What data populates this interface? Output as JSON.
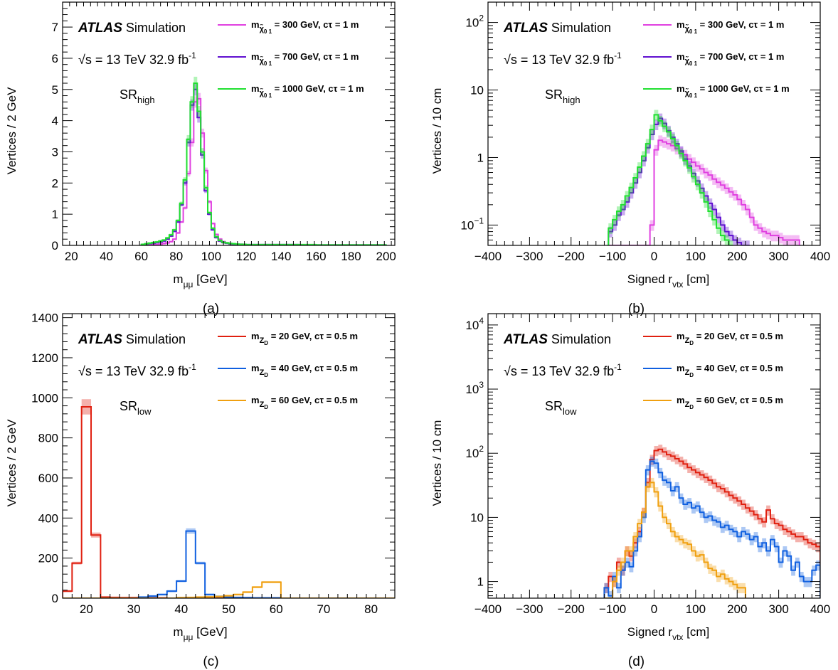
{
  "chart_data": [
    {
      "panel": "a",
      "type": "line",
      "caption": "(a)",
      "xlabel": "m",
      "xlabel_sub": "μμ",
      "xlabel_unit": " [GeV]",
      "ylabel": "Vertices / 2 GeV",
      "xlim": [
        15,
        205
      ],
      "ylim": [
        0,
        7.8
      ],
      "ylog": false,
      "xticks": [
        "20",
        "40",
        "60",
        "80",
        "100",
        "120",
        "140",
        "160",
        "180",
        "200"
      ],
      "xtick_values": [
        20,
        40,
        60,
        80,
        100,
        120,
        140,
        160,
        180,
        200
      ],
      "yticks": [
        "0",
        "1",
        "2",
        "3",
        "4",
        "5",
        "6",
        "7"
      ],
      "ytick_values": [
        0,
        1,
        2,
        3,
        4,
        5,
        6,
        7
      ],
      "atlas": "ATLAS",
      "atlas_suffix": "Simulation",
      "energy_text": "√s = 13 TeV  32.9 fb",
      "energy_sup": "-1",
      "region": "SR",
      "region_sub": "high",
      "x_edges": [
        60,
        62,
        64,
        66,
        68,
        70,
        72,
        74,
        76,
        78,
        80,
        82,
        84,
        86,
        88,
        90,
        92,
        94,
        96,
        98,
        100,
        102,
        104,
        106,
        108,
        110,
        112,
        114,
        116,
        118,
        120,
        130,
        140,
        150,
        160,
        170,
        180,
        190,
        200
      ],
      "series": [
        {
          "name_prefix": "m",
          "name_sub": "χ̃",
          "name_subsub": "0 1",
          "name_suffix": " = 300 GeV, cτ = 1 m",
          "color": "#e040e0",
          "values": [
            0.0,
            0.01,
            0.01,
            0.02,
            0.03,
            0.04,
            0.06,
            0.08,
            0.12,
            0.2,
            0.4,
            0.75,
            1.2,
            2.3,
            3.3,
            4.6,
            4.7,
            3.6,
            2.4,
            1.4,
            0.7,
            0.35,
            0.2,
            0.12,
            0.08,
            0.05,
            0.03,
            0.02,
            0.02,
            0.01,
            0.01,
            0.01,
            0.01,
            0.01,
            0.0,
            0.0,
            0.0,
            0.0
          ]
        },
        {
          "name_prefix": "m",
          "name_sub": "χ̃",
          "name_subsub": "0 1",
          "name_suffix": " = 700 GeV, cτ = 1 m",
          "color": "#6010d0",
          "values": [
            0.02,
            0.04,
            0.06,
            0.07,
            0.09,
            0.11,
            0.14,
            0.2,
            0.3,
            0.45,
            0.75,
            1.3,
            2.0,
            3.3,
            4.5,
            5.0,
            4.1,
            2.9,
            1.75,
            1.0,
            0.5,
            0.25,
            0.14,
            0.09,
            0.07,
            0.05,
            0.04,
            0.03,
            0.03,
            0.02,
            0.02,
            0.02,
            0.02,
            0.01,
            0.01,
            0.01,
            0.01,
            0.01
          ]
        },
        {
          "name_prefix": "m",
          "name_sub": "χ̃",
          "name_subsub": "0 1",
          "name_suffix": " = 1000 GeV, cτ = 1 m",
          "color": "#20e030",
          "values": [
            0.03,
            0.05,
            0.07,
            0.09,
            0.11,
            0.14,
            0.17,
            0.24,
            0.34,
            0.5,
            0.8,
            1.35,
            2.1,
            3.4,
            4.6,
            5.2,
            4.3,
            3.0,
            1.85,
            1.05,
            0.55,
            0.28,
            0.16,
            0.1,
            0.08,
            0.06,
            0.05,
            0.04,
            0.03,
            0.03,
            0.02,
            0.02,
            0.02,
            0.02,
            0.01,
            0.01,
            0.01,
            0.01
          ]
        }
      ]
    },
    {
      "panel": "b",
      "type": "line",
      "caption": "(b)",
      "xlabel": "Signed r",
      "xlabel_sub": "vtx",
      "xlabel_unit": " [cm]",
      "ylabel": "Vertices / 10 cm",
      "xlim": [
        -400,
        400
      ],
      "ylim": [
        0.05,
        200
      ],
      "ylog": true,
      "xticks": [
        "−400",
        "−300",
        "−200",
        "−100",
        "0",
        "100",
        "200",
        "300",
        "400"
      ],
      "xtick_values": [
        -400,
        -300,
        -200,
        -100,
        0,
        100,
        200,
        300,
        400
      ],
      "yticks_log": [
        {
          "base": "10",
          "exp": "−1",
          "value": 0.1
        },
        {
          "base": "1",
          "exp": "",
          "value": 1
        },
        {
          "base": "10",
          "exp": "",
          "value": 10
        },
        {
          "base": "10",
          "exp": "2",
          "value": 100
        }
      ],
      "atlas": "ATLAS",
      "atlas_suffix": "Simulation",
      "energy_text": "√s = 13 TeV  32.9 fb",
      "energy_sup": "-1",
      "region": "SR",
      "region_sub": "high",
      "x_start": -110,
      "bin_width": 10,
      "series": [
        {
          "name_prefix": "m",
          "name_sub": "χ̃",
          "name_subsub": "0 1",
          "name_suffix": " = 300 GeV, cτ = 1 m",
          "color": "#e040e0",
          "values": [
            0,
            0,
            0,
            0,
            0,
            0,
            0,
            0,
            0,
            0,
            0.1,
            1.3,
            1.8,
            1.7,
            1.6,
            1.5,
            1.35,
            1.2,
            1.1,
            0.95,
            0.85,
            0.75,
            0.68,
            0.6,
            0.55,
            0.48,
            0.43,
            0.39,
            0.35,
            0.31,
            0.28,
            0.24,
            0.2,
            0.17,
            0.13,
            0.1,
            0.09,
            0.08,
            0.075,
            0.07,
            0.07,
            0.065,
            0.06,
            0.06,
            0.06,
            0.06
          ]
        },
        {
          "name_prefix": "m",
          "name_sub": "χ̃",
          "name_subsub": "0 1",
          "name_suffix": " = 700 GeV, cτ = 1 m",
          "color": "#6010d0",
          "values": [
            0.08,
            0.1,
            0.14,
            0.17,
            0.22,
            0.3,
            0.42,
            0.6,
            0.9,
            1.4,
            2.2,
            3.1,
            3.8,
            3.2,
            2.5,
            2.0,
            1.6,
            1.25,
            0.95,
            0.75,
            0.58,
            0.45,
            0.35,
            0.27,
            0.21,
            0.17,
            0.13,
            0.1,
            0.08,
            0.07,
            0.06,
            0.055,
            0.05,
            0.05
          ]
        },
        {
          "name_prefix": "m",
          "name_sub": "χ̃",
          "name_subsub": "0 1",
          "name_suffix": " = 1000 GeV, cτ = 1 m",
          "color": "#20e030",
          "values": [
            0.09,
            0.12,
            0.16,
            0.2,
            0.27,
            0.36,
            0.5,
            0.72,
            1.05,
            1.6,
            2.6,
            4.3,
            3.5,
            2.9,
            2.4,
            1.9,
            1.5,
            1.15,
            0.9,
            0.7,
            0.52,
            0.4,
            0.3,
            0.22,
            0.16,
            0.12,
            0.09,
            0.07,
            0.06,
            0.05
          ]
        }
      ]
    },
    {
      "panel": "c",
      "type": "line",
      "caption": "(c)",
      "xlabel": "m",
      "xlabel_sub": "μμ",
      "xlabel_unit": " [GeV]",
      "ylabel": "Vertices / 2 GeV",
      "xlim": [
        15,
        85
      ],
      "ylim": [
        0,
        1420
      ],
      "ylog": false,
      "xticks": [
        "20",
        "30",
        "40",
        "50",
        "60",
        "70",
        "80"
      ],
      "xtick_values": [
        20,
        30,
        40,
        50,
        60,
        70,
        80
      ],
      "yticks": [
        "0",
        "200",
        "400",
        "600",
        "800",
        "1000",
        "1200",
        "1400"
      ],
      "ytick_values": [
        0,
        200,
        400,
        600,
        800,
        1000,
        1200,
        1400
      ],
      "atlas": "ATLAS",
      "atlas_suffix": "Simulation",
      "energy_text": "√s = 13 TeV  32.9 fb",
      "energy_sup": "-1",
      "region": "SR",
      "region_sub": "low",
      "x_start": 15,
      "bin_width": 2,
      "series": [
        {
          "name_prefix": "m",
          "name_sub": "Z",
          "name_subsub": "D",
          "name_suffix": " = 20 GeV, cτ = 0.5 m",
          "color": "#e02010",
          "values": [
            35,
            175,
            955,
            315,
            5,
            3,
            2,
            2,
            1,
            1,
            1,
            0,
            0,
            0,
            0,
            0,
            0,
            0,
            0,
            0,
            0,
            0,
            0,
            0,
            0,
            0,
            0,
            0,
            0,
            0,
            0,
            0,
            0,
            0,
            0
          ]
        },
        {
          "name_prefix": "m",
          "name_sub": "Z",
          "name_subsub": "D",
          "name_suffix": " = 40 GeV, cτ = 0.5 m",
          "color": "#1060e0",
          "values": [
            0,
            0,
            0,
            0,
            0,
            0,
            0,
            0,
            5,
            10,
            18,
            35,
            85,
            335,
            175,
            18,
            8,
            5,
            3,
            2,
            1,
            1,
            1,
            0,
            0,
            0,
            0,
            0,
            0,
            0,
            0,
            0,
            0,
            0,
            0
          ]
        },
        {
          "name_prefix": "m",
          "name_sub": "Z",
          "name_subsub": "D",
          "name_suffix": " = 60 GeV, cτ = 0.5 m",
          "color": "#f0a010",
          "values": [
            0,
            0,
            0,
            0,
            0,
            0,
            0,
            0,
            0,
            0,
            0,
            0,
            2,
            3,
            5,
            6,
            8,
            12,
            18,
            30,
            55,
            80,
            80,
            0,
            0,
            0,
            0,
            0,
            0,
            0,
            0,
            0,
            0,
            0,
            0
          ]
        }
      ]
    },
    {
      "panel": "d",
      "type": "line",
      "caption": "(d)",
      "xlabel": "Signed r",
      "xlabel_sub": "vtx",
      "xlabel_unit": " [cm]",
      "ylabel": "Vertices / 10 cm",
      "xlim": [
        -400,
        400
      ],
      "ylim": [
        0.55,
        15000
      ],
      "ylog": true,
      "xticks": [
        "−400",
        "−300",
        "−200",
        "−100",
        "0",
        "100",
        "200",
        "300",
        "400"
      ],
      "xtick_values": [
        -400,
        -300,
        -200,
        -100,
        0,
        100,
        200,
        300,
        400
      ],
      "yticks_log": [
        {
          "base": "1",
          "exp": "",
          "value": 1
        },
        {
          "base": "10",
          "exp": "",
          "value": 10
        },
        {
          "base": "10",
          "exp": "2",
          "value": 100
        },
        {
          "base": "10",
          "exp": "3",
          "value": 1000
        },
        {
          "base": "10",
          "exp": "4",
          "value": 10000
        }
      ],
      "atlas": "ATLAS",
      "atlas_suffix": "Simulation",
      "energy_text": "√s = 13 TeV  32.9 fb",
      "energy_sup": "-1",
      "region": "SR",
      "region_sub": "low",
      "x_start": -120,
      "bin_width": 10,
      "series": [
        {
          "name_prefix": "m",
          "name_sub": "Z",
          "name_subsub": "D",
          "name_suffix": " = 20 GeV, cτ = 0.5 m",
          "color": "#e02010",
          "values": [
            0.8,
            1.2,
            1,
            2,
            1.5,
            3,
            2.5,
            4,
            6,
            12,
            35,
            80,
            110,
            115,
            105,
            95,
            90,
            82,
            75,
            68,
            60,
            55,
            50,
            46,
            42,
            38,
            34,
            30,
            28,
            25,
            22,
            20,
            18,
            16,
            14,
            12.5,
            11,
            9.5,
            8.5,
            13,
            9.5,
            8,
            7.5,
            6.5,
            6,
            5.5,
            5,
            5,
            4.5,
            4,
            3.8,
            3.5
          ]
        },
        {
          "name_prefix": "m",
          "name_sub": "Z",
          "name_subsub": "D",
          "name_suffix": " = 40 GeV, cτ = 0.5 m",
          "color": "#1060e0",
          "values": [
            0.8,
            0.6,
            1.2,
            0.8,
            1.5,
            2,
            1.7,
            3,
            5,
            10,
            55,
            75,
            70,
            50,
            38,
            35,
            26,
            30,
            20,
            16,
            17,
            14,
            15,
            12,
            10,
            10.5,
            9,
            8.5,
            7,
            7.5,
            6.5,
            6,
            5,
            6,
            5.5,
            4.5,
            5,
            3.5,
            4,
            3,
            4.5,
            3.5,
            2,
            3,
            2.5,
            1.5,
            2,
            1.2,
            1,
            1,
            1.5,
            1.8
          ]
        },
        {
          "name_prefix": "m",
          "name_sub": "Z",
          "name_subsub": "D",
          "name_suffix": " = 60 GeV, cτ = 0.5 m",
          "color": "#f0a010",
          "values": [
            0,
            0,
            1,
            1.5,
            2,
            3,
            3,
            5,
            8,
            12,
            30,
            35,
            25,
            15,
            10,
            8,
            6,
            5,
            4.5,
            4,
            3.8,
            3,
            2.5,
            2.6,
            2,
            1.6,
            1.5,
            1.2,
            1.3,
            1.1,
            1,
            0.9,
            0.8,
            0.8
          ]
        }
      ]
    }
  ]
}
